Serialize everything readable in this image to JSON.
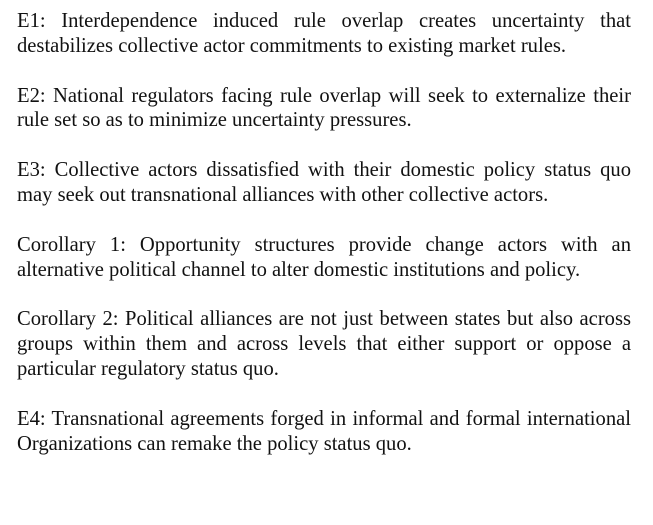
{
  "paragraphs": [
    {
      "id": "e1",
      "text": "E1: Interdependence induced rule overlap creates uncertainty that destabilizes collective actor commitments to existing market rules."
    },
    {
      "id": "e2",
      "text": "E2: National regulators facing rule overlap will seek to externalize their rule set so as to minimize uncertainty pressures."
    },
    {
      "id": "e3",
      "text": "E3: Collective actors dissatisfied with their domestic policy status quo may seek out transnational alliances with other collective actors."
    },
    {
      "id": "corollary-1",
      "text": "Corollary 1: Opportunity structures provide change actors with an alternative political channel to alter domestic institutions and policy."
    },
    {
      "id": "corollary-2",
      "text": "Corollary 2: Political alliances are not just between states but also across groups within them and across levels that either support or oppose a particular regulatory status quo."
    },
    {
      "id": "e4",
      "text": "E4: Transnational agreements forged in informal and formal inter­national Organizations can remake the policy status quo."
    }
  ]
}
